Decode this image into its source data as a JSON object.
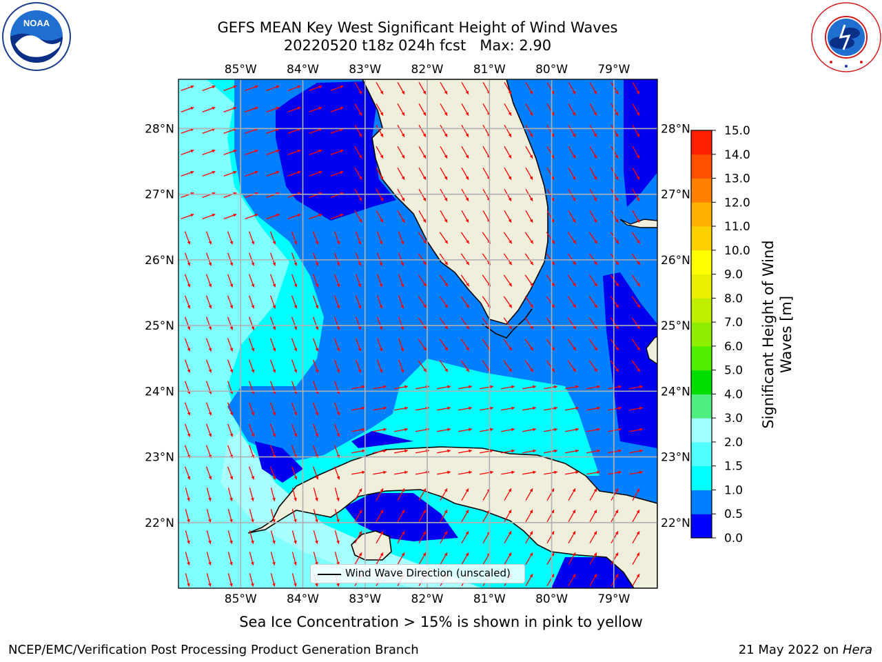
{
  "header": {
    "title": "GEFS MEAN Key West Significant Height of Wind Waves",
    "subtitle": "20220520 t18z 024h fcst   Max: 2.90"
  },
  "logos": {
    "left": "NOAA",
    "right": "NATIONAL WEATHER SERVICE"
  },
  "map": {
    "lon_ticks": [
      "85°W",
      "84°W",
      "83°W",
      "82°W",
      "81°W",
      "80°W",
      "79°W"
    ],
    "lat_ticks": [
      "28°N",
      "27°N",
      "26°N",
      "25°N",
      "24°N",
      "23°N",
      "22°N"
    ],
    "lon_range": [
      -86.0,
      -78.3
    ],
    "lat_range": [
      21.0,
      28.75
    ],
    "ocean_colors": [
      "#0000ee",
      "#0080ff",
      "#00ffff",
      "#80ffff",
      "#a8ffff"
    ],
    "land_color": "#efefdc",
    "arrow_color": "#ff0000",
    "grid": true,
    "legend_label": "Wind Wave Direction (unscaled)"
  },
  "colorbar": {
    "label": "Significant Height of Wind Waves [m]",
    "levels": [
      "0.0",
      "0.5",
      "1.0",
      "1.5",
      "2.0",
      "3.0",
      "4.0",
      "5.0",
      "6.0",
      "7.0",
      "8.0",
      "9.0",
      "10.0",
      "11.0",
      "12.0",
      "13.0",
      "14.0",
      "15.0"
    ],
    "colors": [
      "#0000ff",
      "#0080ff",
      "#00ffff",
      "#50ffff",
      "#a0ffff",
      "#50ee80",
      "#00dd00",
      "#50ee00",
      "#90ee00",
      "#c0ee00",
      "#e8f000",
      "#ffff00",
      "#ffd000",
      "#ffb000",
      "#ff8000",
      "#ff5000",
      "#ff2000"
    ]
  },
  "chart_data": {
    "type": "heatmap",
    "title": "GEFS MEAN Key West Significant Height of Wind Waves",
    "subtitle": "20220520 t18z 024h fcst   Max: 2.90",
    "variable": "Significant Height of Wind Waves [m]",
    "max_value": 2.9,
    "xlim": [
      -86.0,
      -78.3
    ],
    "ylim": [
      21.0,
      28.75
    ],
    "color_levels": [
      0.0,
      0.5,
      1.0,
      1.5,
      2.0,
      3.0,
      4.0,
      5.0,
      6.0,
      7.0,
      8.0,
      9.0,
      10.0,
      11.0,
      12.0,
      13.0,
      14.0,
      15.0
    ],
    "vector_field": "Wind Wave Direction (unscaled)"
  },
  "notes": {
    "sea_ice": "Sea Ice Concentration > 15% is shown in pink to yellow"
  },
  "footer": {
    "left": "NCEP/EMC/Verification Post Processing Product Generation Branch",
    "date": "21 May 2022 on",
    "host": "Hera"
  }
}
